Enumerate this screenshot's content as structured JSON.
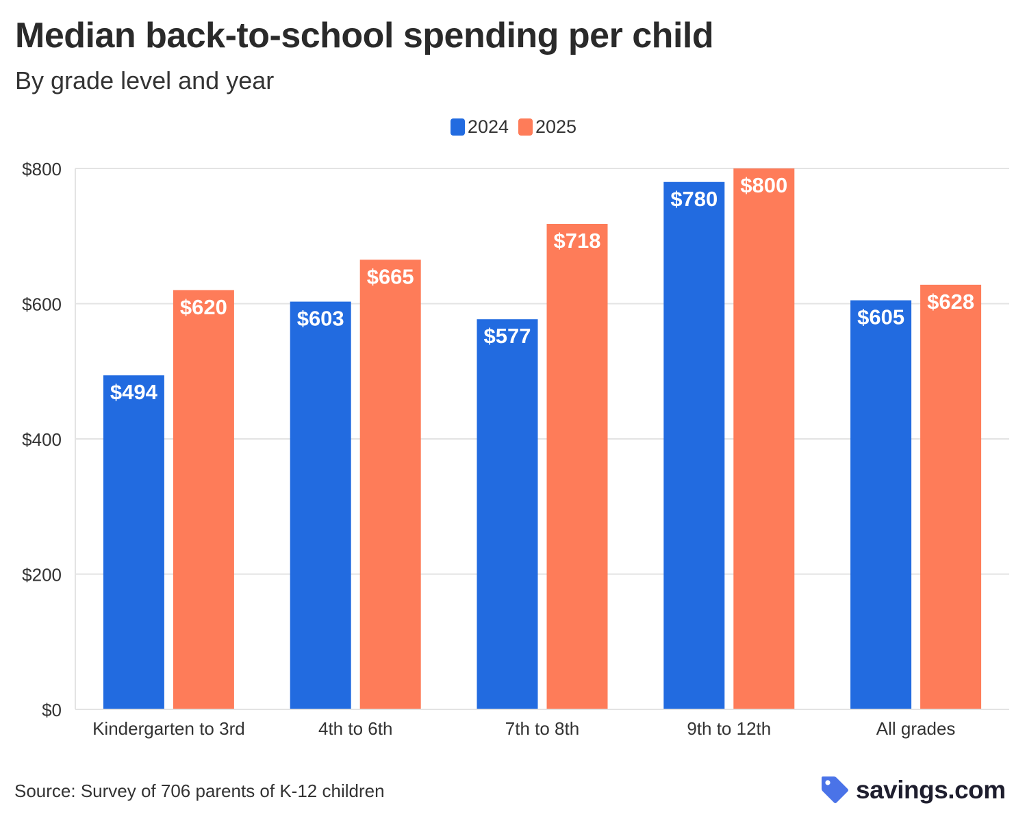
{
  "header": {
    "title": "Median back-to-school spending per child",
    "subtitle": "By grade level and year"
  },
  "footer": {
    "source": "Source: Survey of 706 parents of K-12 children",
    "brand_name": "savings.com",
    "brand_icon": "price-tag-icon"
  },
  "colors": {
    "series_2024": "#226be0",
    "series_2025": "#fe7c59",
    "brand_icon": "#4a73e8"
  },
  "chart_data": {
    "type": "bar",
    "categories": [
      "Kindergarten to 3rd",
      "4th to 6th",
      "7th to 8th",
      "9th to 12th",
      "All grades"
    ],
    "series": [
      {
        "name": "2024",
        "values": [
          494,
          603,
          577,
          780,
          605
        ],
        "labels": [
          "$494",
          "$603",
          "$577",
          "$780",
          "$605"
        ],
        "color": "#226be0"
      },
      {
        "name": "2025",
        "values": [
          620,
          665,
          718,
          800,
          628
        ],
        "labels": [
          "$620",
          "$665",
          "$718",
          "$800",
          "$628"
        ],
        "color": "#fe7c59"
      }
    ],
    "title": "Median back-to-school spending per child",
    "subtitle": "By grade level and year",
    "ylim": [
      0,
      800
    ],
    "yticks": [
      0,
      200,
      400,
      600,
      800
    ],
    "ytick_labels": [
      "$0",
      "$200",
      "$400",
      "$600",
      "$800"
    ],
    "grid": true,
    "legend_position": "top-center"
  }
}
